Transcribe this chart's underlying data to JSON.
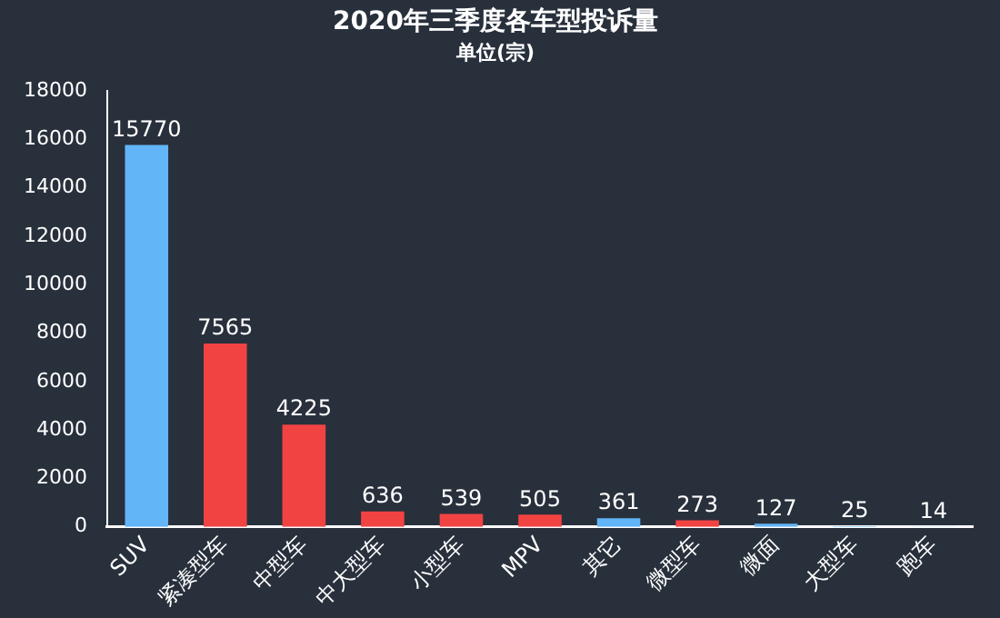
{
  "chart_data": {
    "type": "bar",
    "title": "2020年三季度各车型投诉量",
    "subtitle": "单位(宗)",
    "categories": [
      "SUV",
      "紧凑型车",
      "中型车",
      "中大型车",
      "小型车",
      "MPV",
      "其它",
      "微型车",
      "微面",
      "大型车",
      "跑车"
    ],
    "values": [
      15770,
      7565,
      4225,
      636,
      539,
      505,
      361,
      273,
      127,
      25,
      14
    ],
    "colors": [
      "#62b5f6",
      "#f24343",
      "#f24343",
      "#f24343",
      "#f24343",
      "#f24343",
      "#62b5f6",
      "#f24343",
      "#62b5f6",
      "#62b5f6",
      "#62b5f6"
    ],
    "ylim": [
      0,
      18000
    ],
    "yticks": [
      0,
      2000,
      4000,
      6000,
      8000,
      10000,
      12000,
      14000,
      16000,
      18000
    ],
    "grid": false,
    "legend": false,
    "data_labels": true
  }
}
